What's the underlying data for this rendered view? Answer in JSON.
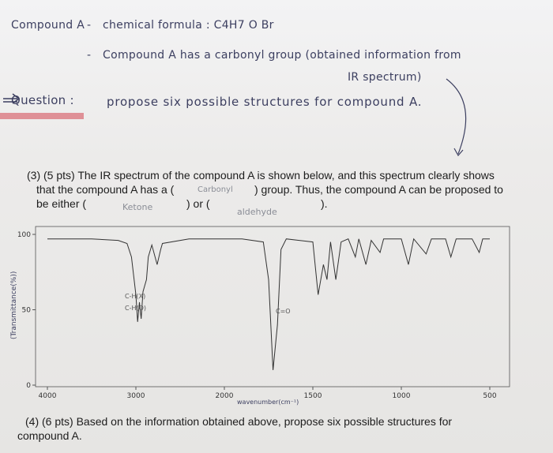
{
  "notes": {
    "compound": "Compound A",
    "dash": "-",
    "formula": "chemical formula : C4H7 O Br",
    "carbonyl_line1": "Compound A has a carbonyl group (obtained information from",
    "carbonyl_line2": "IR spectrum)",
    "question_label": "Question :",
    "question": "propose six possible structures for compound A."
  },
  "question3": {
    "line1": "(3) (5 pts) The IR spectrum of the compound A is shown below, and this spectrum clearly shows",
    "line2a": "that the compound A has a (",
    "line2b": ") group. Thus, the compound A can be proposed to",
    "line3a": "be either (",
    "line3b": ") or (",
    "line3c": ").",
    "answer_group": "Carbonyl",
    "answer_1": "Ketone",
    "answer_2": "aldehyde"
  },
  "spectrum": {
    "y_label": "(Transmittance(%))",
    "x_label": "wavenumber(cm⁻¹)",
    "annotations": [
      "C-H(X)",
      "C-H(O)",
      "C=O"
    ],
    "xlim": [
      4000,
      500
    ],
    "ylim": [
      0,
      100
    ],
    "xticks": [
      4000,
      3000,
      2000,
      1500,
      1000,
      500
    ],
    "yticks": [
      100,
      50,
      0
    ],
    "x": [
      4000,
      3500,
      3200,
      3100,
      3050,
      3000,
      2980,
      2960,
      2940,
      2920,
      2880,
      2860,
      2820,
      2760,
      2720,
      2700,
      2400,
      1900,
      1780,
      1750,
      1725,
      1700,
      1680,
      1650,
      1500,
      1470,
      1440,
      1420,
      1400,
      1370,
      1340,
      1300,
      1260,
      1240,
      1200,
      1170,
      1120,
      1100,
      1000,
      960,
      930,
      860,
      830,
      750,
      720,
      690,
      600,
      560,
      540,
      500
    ],
    "values": [
      97,
      97,
      96,
      94,
      85,
      60,
      42,
      55,
      44,
      62,
      70,
      85,
      93,
      80,
      90,
      94,
      97,
      97,
      95,
      70,
      10,
      40,
      90,
      97,
      95,
      60,
      80,
      70,
      95,
      70,
      95,
      97,
      85,
      97,
      80,
      96,
      88,
      97,
      97,
      80,
      97,
      87,
      97,
      97,
      85,
      97,
      97,
      88,
      97,
      97
    ],
    "color": "#333333"
  },
  "question4": {
    "line1": "(4) (6 pts) Based on the information obtained above, propose six possible structures for",
    "line2": "compound A."
  }
}
